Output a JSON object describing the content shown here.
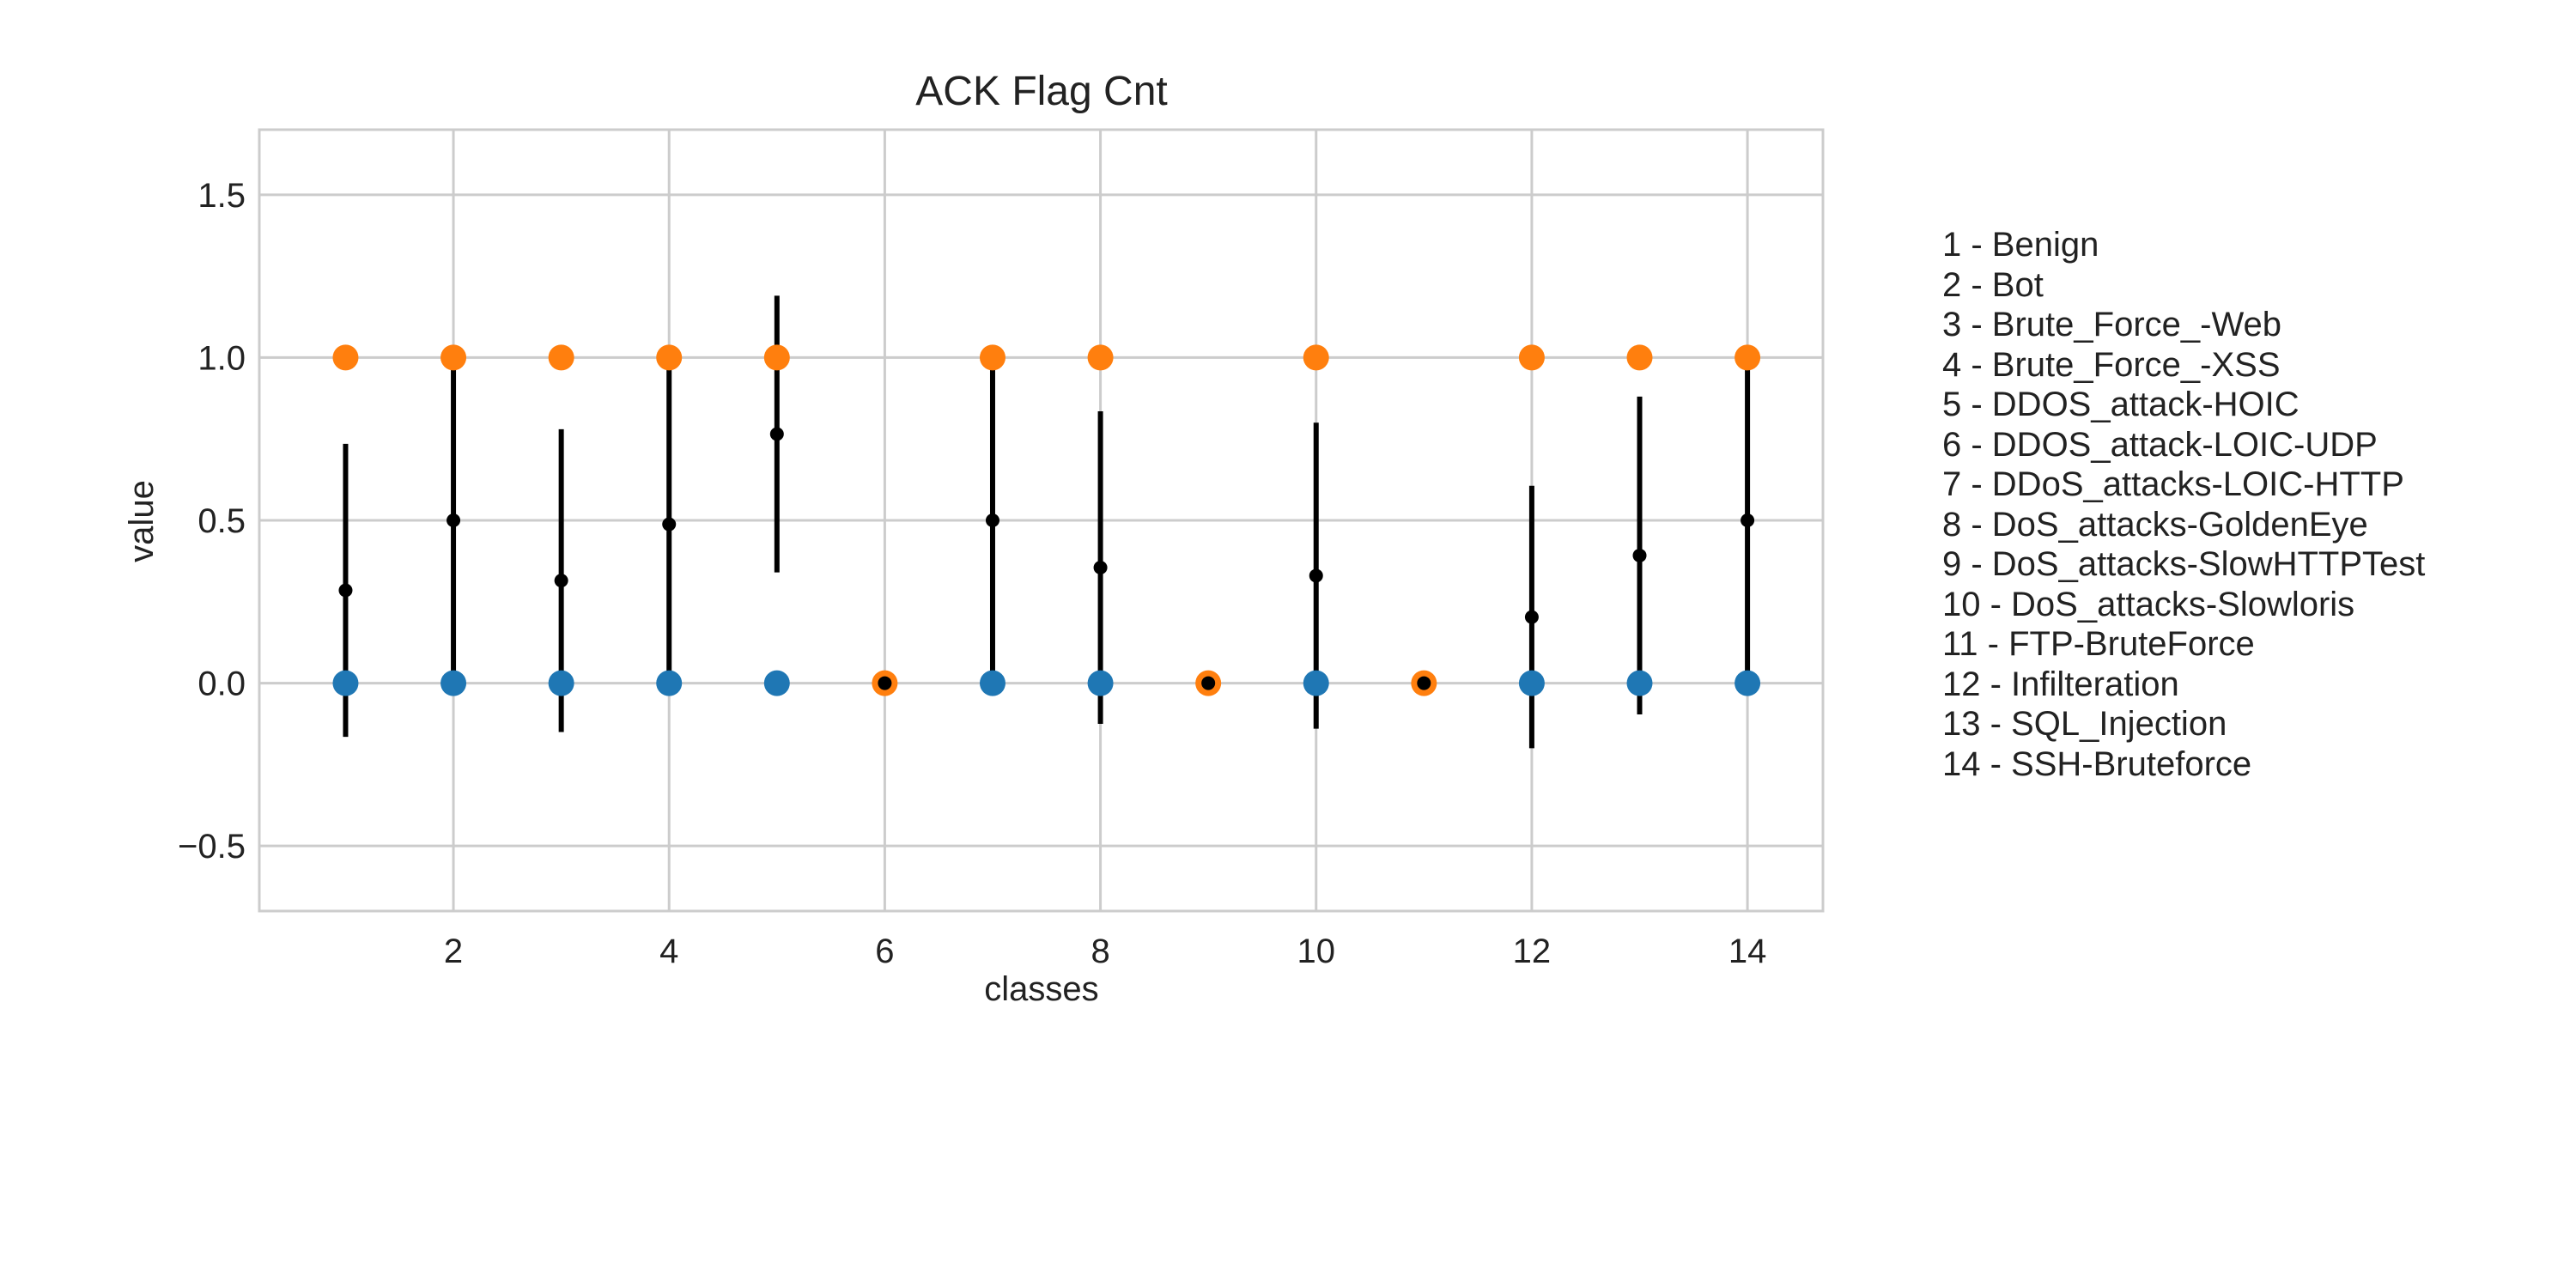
{
  "chart_data": {
    "type": "scatter",
    "title": "ACK Flag Cnt",
    "xlabel": "classes",
    "ylabel": "value",
    "xlim": [
      0.2,
      14.7
    ],
    "ylim": [
      -0.7,
      1.7
    ],
    "xticks": [
      2,
      4,
      6,
      8,
      10,
      12,
      14
    ],
    "yticks": [
      1.5,
      1.0,
      0.5,
      0.0,
      -0.5
    ],
    "ytick_labels": [
      "1.5",
      "1.0",
      "0.5",
      "0.0",
      "−0.5"
    ],
    "grid": true,
    "colors": {
      "min": "#1f77b4",
      "max": "#ff7f0e",
      "mean": "#000000"
    },
    "x": [
      1,
      2,
      3,
      4,
      5,
      6,
      7,
      8,
      9,
      10,
      11,
      12,
      13,
      14
    ],
    "series": [
      {
        "role": "min",
        "values": [
          0,
          0,
          0,
          0,
          0,
          0,
          0,
          0,
          0,
          0,
          0,
          0,
          0,
          0
        ]
      },
      {
        "role": "max",
        "values": [
          1,
          1,
          1,
          1,
          1,
          0,
          1,
          1,
          0,
          1,
          0,
          1,
          1,
          1
        ]
      },
      {
        "role": "mean",
        "values": [
          0.285,
          0.5,
          0.315,
          0.488,
          0.765,
          0,
          0.5,
          0.355,
          0,
          0.33,
          0,
          0.203,
          0.392,
          0.5
        ]
      },
      {
        "role": "std",
        "values": [
          0.45,
          0.5,
          0.465,
          0.5,
          0.425,
          0,
          0.5,
          0.48,
          0,
          0.47,
          0,
          0.403,
          0.488,
          0.5
        ]
      }
    ],
    "legend": {
      "placement": "right",
      "entries": [
        "1 - Benign",
        "2 - Bot",
        "3 - Brute_Force_-Web",
        "4 - Brute_Force_-XSS",
        "5 - DDOS_attack-HOIC",
        "6 - DDOS_attack-LOIC-UDP",
        "7 - DDoS_attacks-LOIC-HTTP",
        "8 - DoS_attacks-GoldenEye",
        "9 - DoS_attacks-SlowHTTPTest",
        "10 - DoS_attacks-Slowloris",
        "11 - FTP-BruteForce",
        "12 - Infilteration",
        "13 - SQL_Injection",
        "14 - SSH-Bruteforce"
      ]
    }
  }
}
